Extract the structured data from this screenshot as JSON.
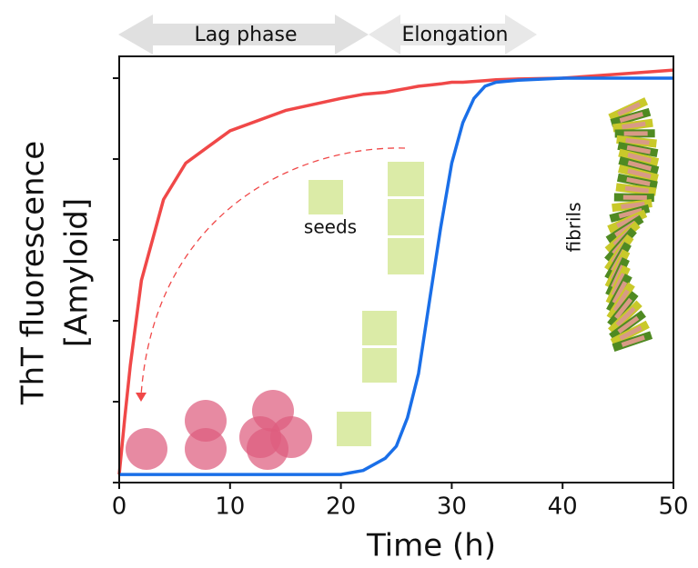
{
  "chart_data": {
    "type": "line",
    "xlabel": "Time (h)",
    "ylabel": [
      "ThT fluorescence",
      "[Amyloid]"
    ],
    "x": [
      0,
      0.5,
      1,
      2,
      4,
      6,
      8,
      10,
      15,
      20,
      22,
      24,
      25,
      26,
      27,
      28,
      29,
      30,
      31,
      32,
      33,
      34,
      36,
      40,
      45,
      50
    ],
    "series": [
      {
        "color": "#f04848",
        "values": [
          0.02,
          0.16,
          0.29,
          0.5,
          0.7,
          0.79,
          0.83,
          0.87,
          0.92,
          0.95,
          0.96,
          0.965,
          0.97,
          0.975,
          0.98,
          0.983,
          0.986,
          0.99,
          0.99,
          0.992,
          0.994,
          0.996,
          0.998,
          1.0,
          1.01,
          1.02
        ]
      },
      {
        "color": "#1a6fe8",
        "values": [
          0.02,
          0.02,
          0.02,
          0.02,
          0.02,
          0.02,
          0.02,
          0.02,
          0.02,
          0.02,
          0.03,
          0.06,
          0.09,
          0.16,
          0.27,
          0.45,
          0.63,
          0.79,
          0.89,
          0.95,
          0.98,
          0.99,
          0.995,
          1.0,
          1.0,
          1.0
        ]
      }
    ],
    "xlim": [
      0,
      50
    ],
    "xticks": [
      0,
      10,
      20,
      30,
      40,
      50
    ],
    "ylim": [
      0,
      1.054
    ],
    "yticks": [
      0,
      0.2,
      0.4,
      0.6,
      0.8,
      1.0
    ],
    "ytick_labels_shown": false,
    "annotations": {
      "lag": "Lag phase",
      "elongation": "Elongation",
      "seeds": "seeds",
      "fibrils": "fibrils"
    }
  }
}
